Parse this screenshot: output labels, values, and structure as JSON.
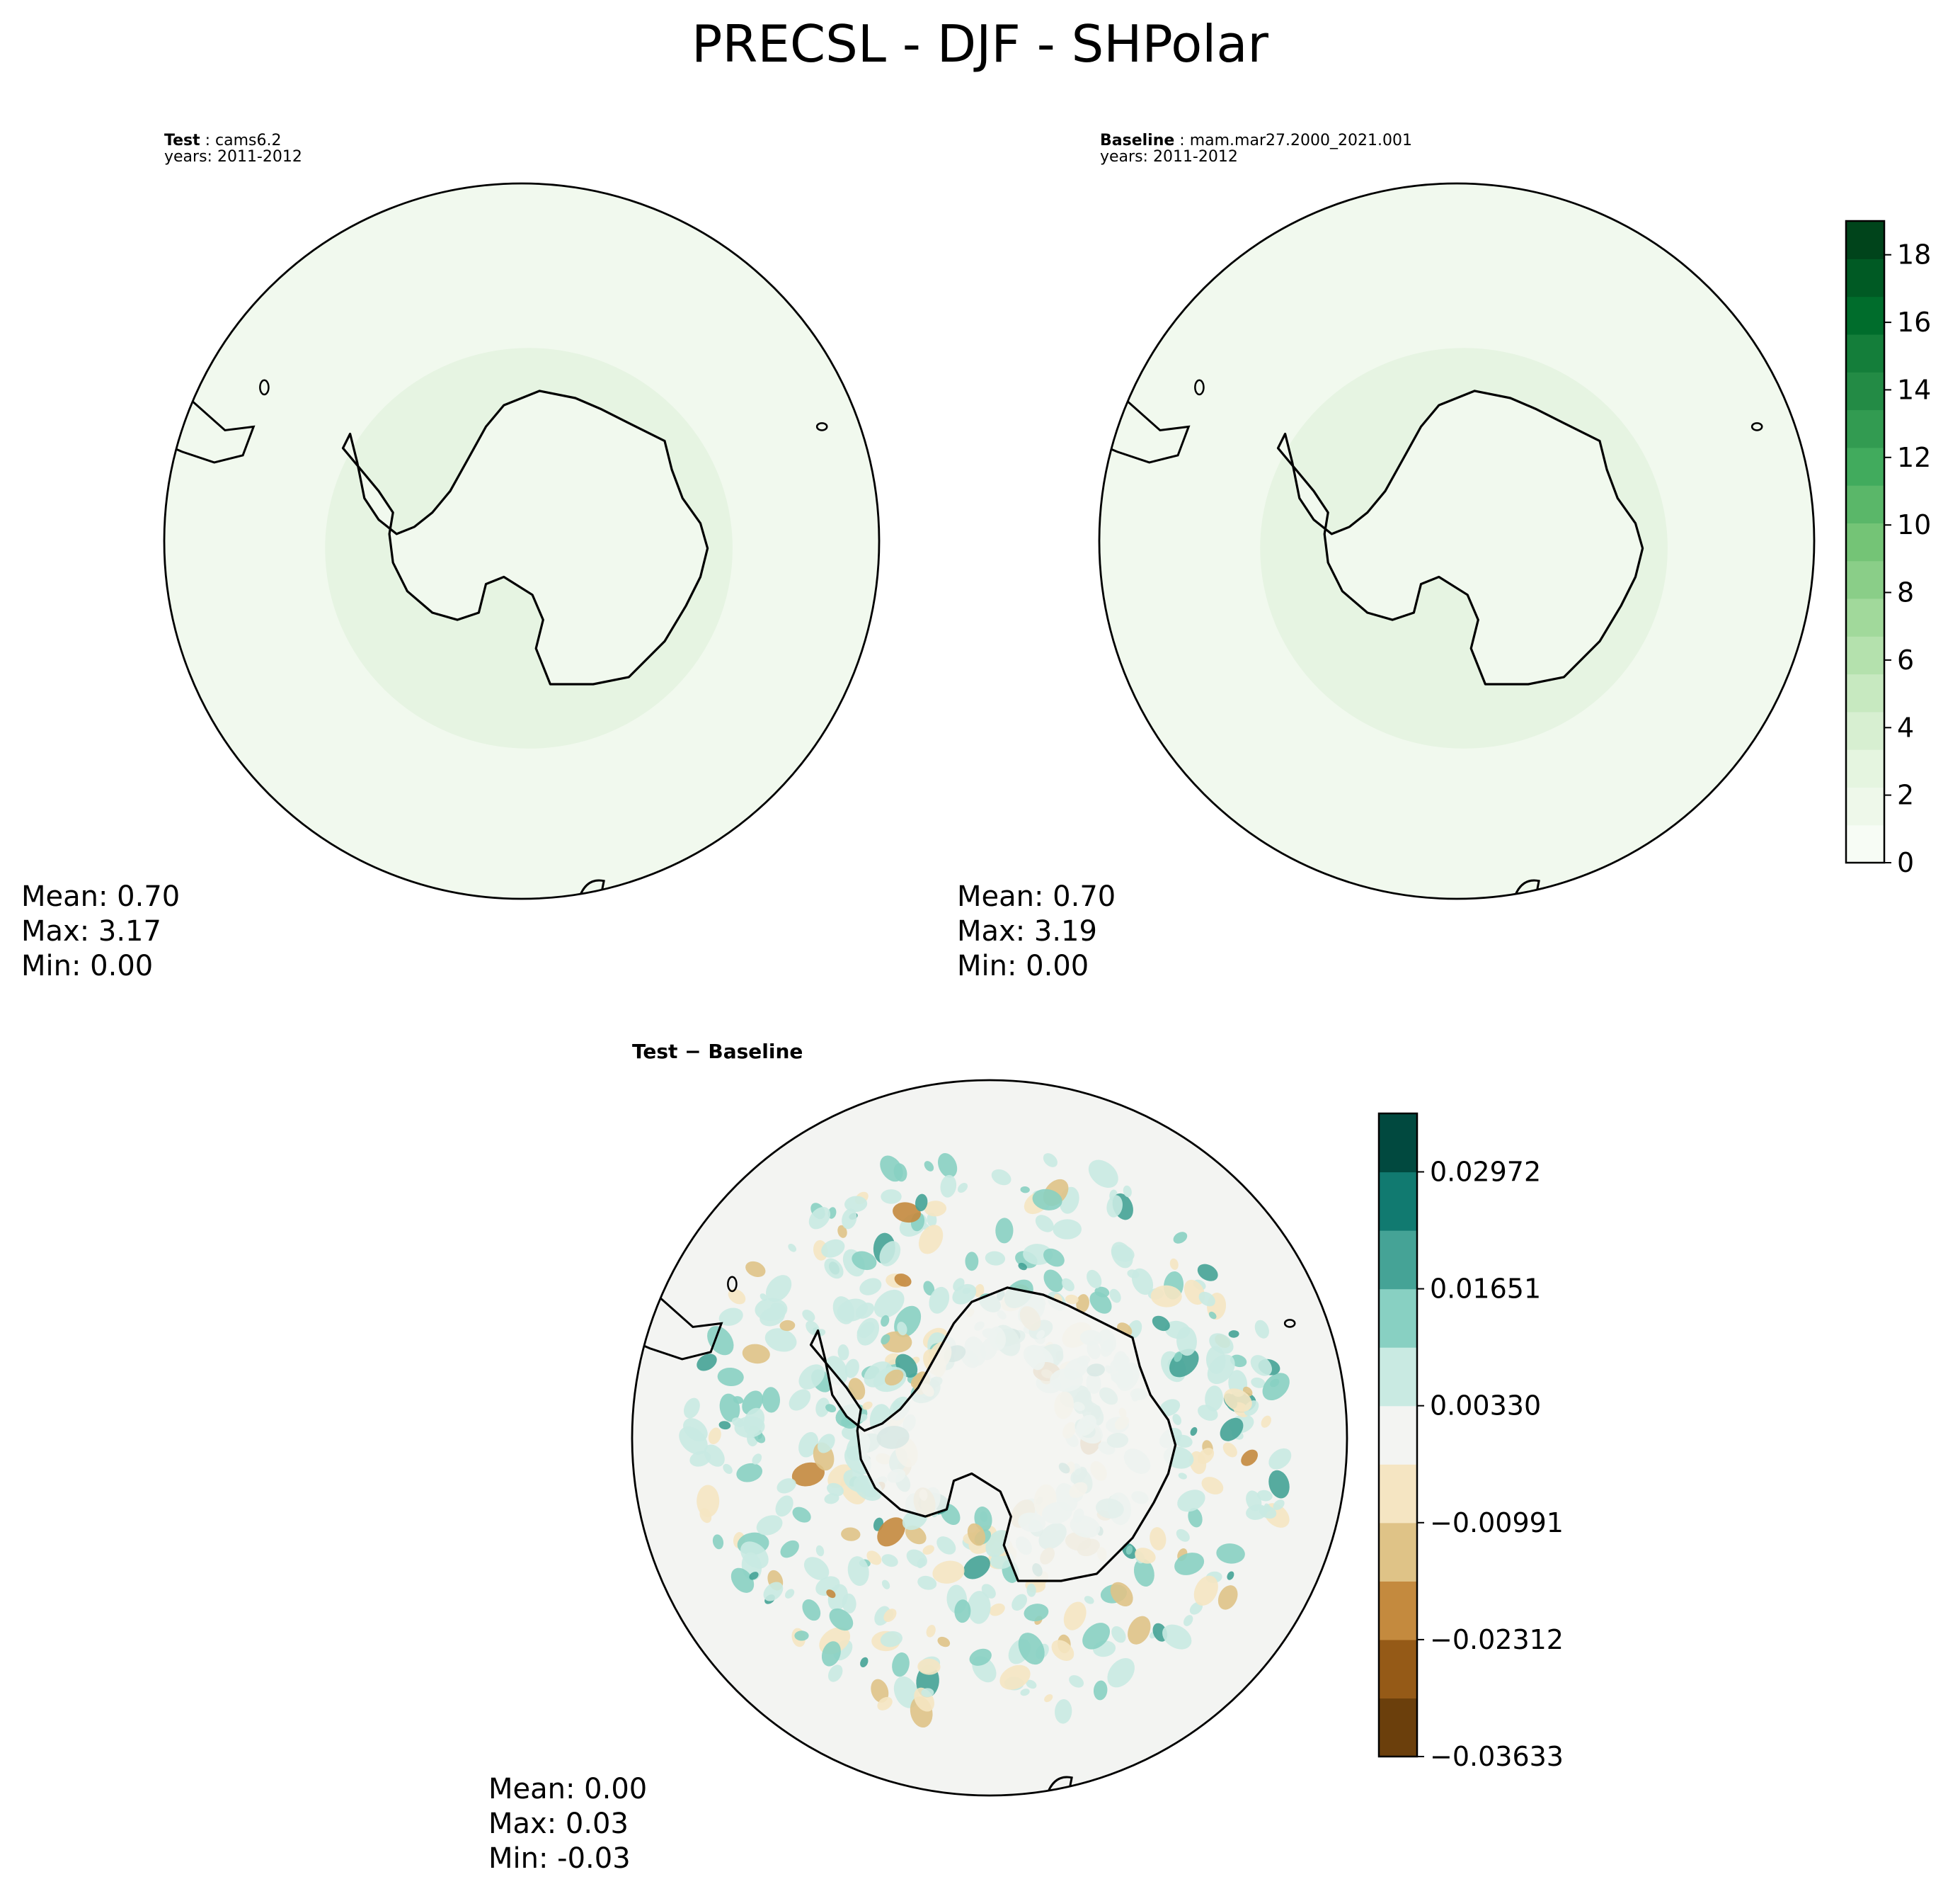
{
  "figure": {
    "title": "PRECSL - DJF - SHPolar"
  },
  "panels": {
    "test": {
      "label": "Test",
      "case": "cams6.2",
      "years": "years: 2011-2012",
      "stats": {
        "mean": "Mean:  0.70",
        "max": "Max:  3.17",
        "min": "Min:  0.00"
      }
    },
    "baseline": {
      "label": "Baseline",
      "case": "mam.mar27.2000_2021.001",
      "years": "years: 2011-2012",
      "stats": {
        "mean": "Mean:  0.70",
        "max": "Max:  3.19",
        "min": "Min:  0.00"
      }
    },
    "diff": {
      "label": "Test − Baseline",
      "stats": {
        "mean": "Mean:  0.00",
        "max": "Max:  0.03",
        "min": "Min: -0.03"
      }
    }
  },
  "chart_data": [
    {
      "type": "heatmap",
      "title": "Test: cams6.2",
      "projection": "south-polar-stereographic",
      "mean": 0.7,
      "max": 3.17,
      "min": 0.0,
      "colormap": "Greens",
      "levels_range": [
        0,
        19
      ]
    },
    {
      "type": "heatmap",
      "title": "Baseline: mam.mar27.2000_2021.001",
      "projection": "south-polar-stereographic",
      "mean": 0.7,
      "max": 3.19,
      "min": 0.0,
      "colormap": "Greens",
      "colorbar": {
        "ticks": [
          "0",
          "2",
          "4",
          "6",
          "8",
          "10",
          "12",
          "14",
          "16",
          "18"
        ],
        "tick_values": [
          0,
          2,
          4,
          6,
          8,
          10,
          12,
          14,
          16,
          18
        ],
        "range": [
          0,
          19
        ],
        "colors": [
          "#f7fcf5",
          "#eef8ea",
          "#e5f5e0",
          "#d7efd1",
          "#c7e9c0",
          "#b4e1ad",
          "#a1d99b",
          "#8ace88",
          "#74c476",
          "#5ab769",
          "#41ab5d",
          "#329b51",
          "#238b45",
          "#147e3a",
          "#006d2c",
          "#005a24",
          "#00441b"
        ]
      }
    },
    {
      "type": "heatmap",
      "title": "Test − Baseline",
      "projection": "south-polar-stereographic",
      "mean": 0.0,
      "max": 0.03,
      "min": -0.03,
      "colormap": "BrBG",
      "colorbar": {
        "ticks": [
          "0.02972",
          "0.01651",
          "0.00330",
          "−0.00991",
          "−0.02312",
          "−0.03633"
        ],
        "tick_values": [
          0.02972,
          0.01651,
          0.0033,
          -0.00991,
          -0.02312,
          -0.03633
        ],
        "colors": [
          "#6b3f0c",
          "#955a17",
          "#c48a3e",
          "#dfc387",
          "#f5e5c2",
          "#f3f4f2",
          "#c9eae2",
          "#88d0c2",
          "#45a396",
          "#117a70",
          "#01493f"
        ]
      }
    }
  ],
  "colors": {
    "test_fill": "#f1f9ee",
    "test_band": "#e6f4e2",
    "diff_fill": "#f3f4f2",
    "diff_pos": "#c9eae2",
    "diff_pos2": "#88d0c2",
    "diff_pos3": "#45a396",
    "diff_neg": "#f5e5c2",
    "diff_neg2": "#dfc387",
    "diff_neg3": "#c48a3e"
  }
}
